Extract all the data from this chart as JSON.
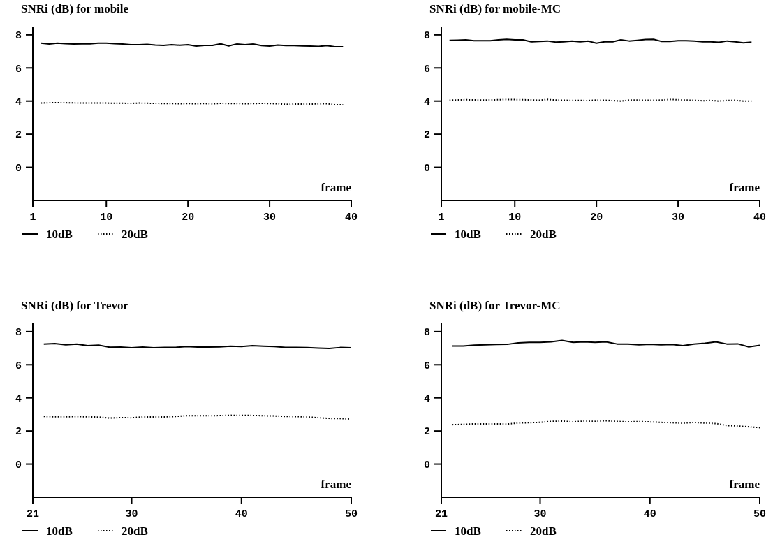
{
  "chart_data": [
    {
      "type": "line",
      "title": "SNRi (dB) for mobile",
      "xlabel": "frame",
      "x": [
        2,
        3,
        4,
        5,
        6,
        7,
        8,
        9,
        10,
        11,
        12,
        13,
        14,
        15,
        16,
        17,
        18,
        19,
        20,
        21,
        22,
        23,
        24,
        25,
        26,
        27,
        28,
        29,
        30,
        31,
        32,
        33,
        34,
        35,
        36,
        37,
        38,
        39
      ],
      "xlim": [
        1,
        40
      ],
      "xticks": [
        1,
        10,
        20,
        30,
        40
      ],
      "ylim": [
        -2,
        8.5
      ],
      "yticks": [
        0,
        2,
        4,
        6,
        8
      ],
      "legend": "bottom",
      "grid": false,
      "series": [
        {
          "name": "10dB",
          "color": "#000000",
          "line_style": "solid",
          "values": [
            7.5,
            7.45,
            7.5,
            7.47,
            7.45,
            7.46,
            7.46,
            7.5,
            7.5,
            7.47,
            7.45,
            7.4,
            7.4,
            7.42,
            7.38,
            7.36,
            7.4,
            7.37,
            7.4,
            7.32,
            7.36,
            7.36,
            7.46,
            7.33,
            7.45,
            7.4,
            7.45,
            7.35,
            7.32,
            7.38,
            7.35,
            7.35,
            7.33,
            7.32,
            7.3,
            7.35,
            7.28,
            7.28
          ]
        },
        {
          "name": "20dB",
          "color": "#000000",
          "line_style": "dotted",
          "values": [
            3.88,
            3.9,
            3.9,
            3.9,
            3.89,
            3.88,
            3.88,
            3.88,
            3.88,
            3.87,
            3.87,
            3.86,
            3.88,
            3.87,
            3.86,
            3.85,
            3.85,
            3.84,
            3.85,
            3.84,
            3.85,
            3.83,
            3.86,
            3.85,
            3.85,
            3.84,
            3.85,
            3.86,
            3.85,
            3.84,
            3.8,
            3.82,
            3.82,
            3.82,
            3.83,
            3.84,
            3.78,
            3.78
          ]
        }
      ]
    },
    {
      "type": "line",
      "title": "SNRi (dB) for mobile-MC",
      "xlabel": "frame",
      "x": [
        2,
        3,
        4,
        5,
        6,
        7,
        8,
        9,
        10,
        11,
        12,
        13,
        14,
        15,
        16,
        17,
        18,
        19,
        20,
        21,
        22,
        23,
        24,
        25,
        26,
        27,
        28,
        29,
        30,
        31,
        32,
        33,
        34,
        35,
        36,
        37,
        38,
        39
      ],
      "xlim": [
        1,
        40
      ],
      "xticks": [
        1,
        10,
        20,
        30,
        40
      ],
      "ylim": [
        -2,
        8.5
      ],
      "yticks": [
        0,
        2,
        4,
        6,
        8
      ],
      "legend": "bottom",
      "grid": false,
      "series": [
        {
          "name": "10dB",
          "color": "#000000",
          "line_style": "solid",
          "values": [
            7.67,
            7.68,
            7.7,
            7.65,
            7.65,
            7.65,
            7.7,
            7.73,
            7.7,
            7.7,
            7.58,
            7.6,
            7.63,
            7.56,
            7.58,
            7.62,
            7.58,
            7.62,
            7.5,
            7.58,
            7.58,
            7.7,
            7.63,
            7.67,
            7.72,
            7.73,
            7.6,
            7.6,
            7.65,
            7.65,
            7.62,
            7.58,
            7.58,
            7.55,
            7.63,
            7.58,
            7.52,
            7.56
          ]
        },
        {
          "name": "20dB",
          "color": "#000000",
          "line_style": "dotted",
          "values": [
            4.05,
            4.07,
            4.08,
            4.07,
            4.06,
            4.07,
            4.08,
            4.1,
            4.09,
            4.08,
            4.07,
            4.05,
            4.1,
            4.06,
            4.05,
            4.04,
            4.04,
            4.03,
            4.06,
            4.05,
            4.03,
            4.0,
            4.06,
            4.06,
            4.05,
            4.05,
            4.06,
            4.1,
            4.08,
            4.06,
            4.05,
            4.02,
            4.04,
            4.0,
            4.04,
            4.05,
            4.0,
            4.0
          ]
        }
      ]
    },
    {
      "type": "line",
      "title": "SNRi (dB) for Trevor",
      "xlabel": "frame",
      "x": [
        22,
        23,
        24,
        25,
        26,
        27,
        28,
        29,
        30,
        31,
        32,
        33,
        34,
        35,
        36,
        37,
        38,
        39,
        40,
        41,
        42,
        43,
        44,
        45,
        46,
        47,
        48,
        49,
        50
      ],
      "xlim": [
        21,
        50
      ],
      "xticks": [
        21,
        30,
        40,
        50
      ],
      "ylim": [
        -2,
        8.5
      ],
      "yticks": [
        0,
        2,
        4,
        6,
        8
      ],
      "legend": "bottom",
      "grid": false,
      "series": [
        {
          "name": "10dB",
          "color": "#000000",
          "line_style": "solid",
          "values": [
            7.25,
            7.28,
            7.2,
            7.25,
            7.15,
            7.18,
            7.06,
            7.07,
            7.02,
            7.07,
            7.02,
            7.04,
            7.05,
            7.1,
            7.07,
            7.07,
            7.08,
            7.12,
            7.1,
            7.15,
            7.12,
            7.1,
            7.05,
            7.05,
            7.03,
            7.0,
            6.98,
            7.04,
            7.02
          ]
        },
        {
          "name": "20dB",
          "color": "#000000",
          "line_style": "dotted",
          "values": [
            2.88,
            2.86,
            2.86,
            2.87,
            2.86,
            2.84,
            2.78,
            2.81,
            2.8,
            2.85,
            2.85,
            2.85,
            2.88,
            2.92,
            2.92,
            2.92,
            2.93,
            2.95,
            2.94,
            2.94,
            2.92,
            2.91,
            2.88,
            2.87,
            2.85,
            2.8,
            2.76,
            2.75,
            2.72
          ]
        }
      ]
    },
    {
      "type": "line",
      "title": "SNRi (dB) for Trevor-MC",
      "xlabel": "frame",
      "x": [
        22,
        23,
        24,
        25,
        26,
        27,
        28,
        29,
        30,
        31,
        32,
        33,
        34,
        35,
        36,
        37,
        38,
        39,
        40,
        41,
        42,
        43,
        44,
        45,
        46,
        47,
        48,
        49,
        50
      ],
      "xlim": [
        21,
        50
      ],
      "xticks": [
        21,
        30,
        40,
        50
      ],
      "ylim": [
        -2,
        8.5
      ],
      "yticks": [
        0,
        2,
        4,
        6,
        8
      ],
      "legend": "bottom",
      "grid": false,
      "series": [
        {
          "name": "10dB",
          "color": "#000000",
          "line_style": "solid",
          "values": [
            7.13,
            7.13,
            7.18,
            7.2,
            7.22,
            7.23,
            7.32,
            7.35,
            7.35,
            7.38,
            7.47,
            7.35,
            7.38,
            7.35,
            7.38,
            7.25,
            7.25,
            7.2,
            7.23,
            7.2,
            7.22,
            7.15,
            7.25,
            7.3,
            7.38,
            7.25,
            7.26,
            7.08,
            7.17
          ]
        },
        {
          "name": "20dB",
          "color": "#000000",
          "line_style": "dotted",
          "values": [
            2.38,
            2.4,
            2.43,
            2.43,
            2.43,
            2.42,
            2.48,
            2.5,
            2.52,
            2.58,
            2.6,
            2.55,
            2.6,
            2.58,
            2.62,
            2.58,
            2.55,
            2.57,
            2.55,
            2.52,
            2.5,
            2.47,
            2.52,
            2.48,
            2.45,
            2.33,
            2.3,
            2.25,
            2.2
          ]
        }
      ]
    }
  ]
}
